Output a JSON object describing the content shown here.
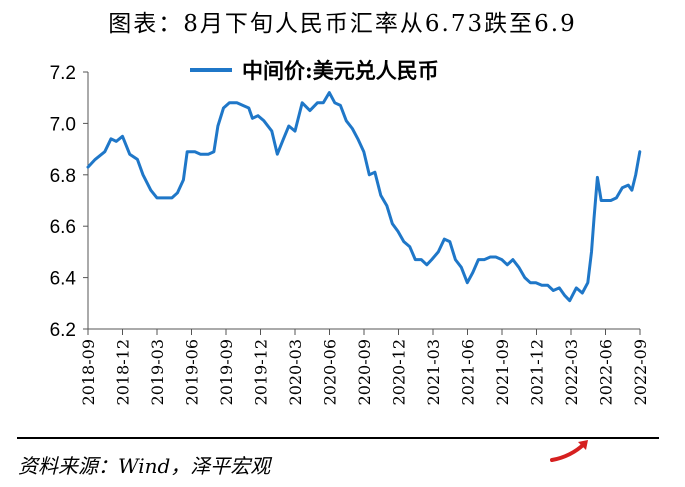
{
  "header": {
    "title": "图表：8月下旬人民币汇率从6.73跌至6.9"
  },
  "footer": {
    "source": "资料来源：Wind，泽平宏观"
  },
  "colors": {
    "series": "#1f77c8",
    "axis": "#555555",
    "text": "#000000",
    "accent": "#d62020"
  },
  "chart_data": {
    "type": "line",
    "title": "图表：8月下旬人民币汇率从6.73跌至6.9",
    "xlabel": "",
    "ylabel": "",
    "ylim": [
      6.2,
      7.2
    ],
    "yticks": [
      "6.2",
      "6.4",
      "6.6",
      "6.8",
      "7.0",
      "7.2"
    ],
    "xticks": [
      "2018-09",
      "2018-12",
      "2019-03",
      "2019-06",
      "2019-09",
      "2019-12",
      "2020-03",
      "2020-06",
      "2020-09",
      "2020-12",
      "2021-03",
      "2021-06",
      "2021-09",
      "2021-12",
      "2022-03",
      "2022-06",
      "2022-09"
    ],
    "legend": {
      "position": "top-center"
    },
    "grid": false,
    "series": [
      {
        "name": "中间价:美元兑人民币",
        "points": [
          [
            "2018-09-01",
            6.83
          ],
          [
            "2018-09-20",
            6.86
          ],
          [
            "2018-10-15",
            6.89
          ],
          [
            "2018-11-01",
            6.94
          ],
          [
            "2018-11-15",
            6.93
          ],
          [
            "2018-12-01",
            6.95
          ],
          [
            "2018-12-20",
            6.88
          ],
          [
            "2019-01-10",
            6.86
          ],
          [
            "2019-01-25",
            6.8
          ],
          [
            "2019-02-15",
            6.74
          ],
          [
            "2019-03-01",
            6.71
          ],
          [
            "2019-03-20",
            6.71
          ],
          [
            "2019-04-10",
            6.71
          ],
          [
            "2019-04-25",
            6.73
          ],
          [
            "2019-05-10",
            6.78
          ],
          [
            "2019-05-20",
            6.89
          ],
          [
            "2019-06-10",
            6.89
          ],
          [
            "2019-06-25",
            6.88
          ],
          [
            "2019-07-15",
            6.88
          ],
          [
            "2019-07-30",
            6.89
          ],
          [
            "2019-08-10",
            6.99
          ],
          [
            "2019-08-25",
            7.06
          ],
          [
            "2019-09-10",
            7.08
          ],
          [
            "2019-09-30",
            7.08
          ],
          [
            "2019-10-15",
            7.07
          ],
          [
            "2019-10-31",
            7.06
          ],
          [
            "2019-11-10",
            7.02
          ],
          [
            "2019-11-25",
            7.03
          ],
          [
            "2019-12-10",
            7.01
          ],
          [
            "2019-12-31",
            6.97
          ],
          [
            "2020-01-15",
            6.88
          ],
          [
            "2020-02-01",
            6.94
          ],
          [
            "2020-02-15",
            6.99
          ],
          [
            "2020-03-01",
            6.97
          ],
          [
            "2020-03-20",
            7.08
          ],
          [
            "2020-04-10",
            7.05
          ],
          [
            "2020-04-30",
            7.08
          ],
          [
            "2020-05-15",
            7.08
          ],
          [
            "2020-05-31",
            7.12
          ],
          [
            "2020-06-15",
            7.08
          ],
          [
            "2020-06-30",
            7.07
          ],
          [
            "2020-07-15",
            7.01
          ],
          [
            "2020-07-31",
            6.98
          ],
          [
            "2020-08-15",
            6.94
          ],
          [
            "2020-08-31",
            6.89
          ],
          [
            "2020-09-15",
            6.8
          ],
          [
            "2020-09-30",
            6.81
          ],
          [
            "2020-10-15",
            6.72
          ],
          [
            "2020-10-31",
            6.68
          ],
          [
            "2020-11-15",
            6.61
          ],
          [
            "2020-11-30",
            6.58
          ],
          [
            "2020-12-15",
            6.54
          ],
          [
            "2020-12-31",
            6.52
          ],
          [
            "2021-01-15",
            6.47
          ],
          [
            "2021-01-31",
            6.47
          ],
          [
            "2021-02-15",
            6.45
          ],
          [
            "2021-02-28",
            6.47
          ],
          [
            "2021-03-15",
            6.5
          ],
          [
            "2021-03-31",
            6.55
          ],
          [
            "2021-04-15",
            6.54
          ],
          [
            "2021-04-30",
            6.47
          ],
          [
            "2021-05-15",
            6.44
          ],
          [
            "2021-05-31",
            6.38
          ],
          [
            "2021-06-15",
            6.42
          ],
          [
            "2021-06-30",
            6.47
          ],
          [
            "2021-07-15",
            6.47
          ],
          [
            "2021-07-31",
            6.48
          ],
          [
            "2021-08-15",
            6.48
          ],
          [
            "2021-08-31",
            6.47
          ],
          [
            "2021-09-15",
            6.45
          ],
          [
            "2021-09-30",
            6.47
          ],
          [
            "2021-10-15",
            6.44
          ],
          [
            "2021-10-31",
            6.4
          ],
          [
            "2021-11-15",
            6.38
          ],
          [
            "2021-11-30",
            6.38
          ],
          [
            "2021-12-15",
            6.37
          ],
          [
            "2021-12-31",
            6.37
          ],
          [
            "2022-01-15",
            6.35
          ],
          [
            "2022-01-31",
            6.36
          ],
          [
            "2022-02-15",
            6.33
          ],
          [
            "2022-02-28",
            6.31
          ],
          [
            "2022-03-15",
            6.36
          ],
          [
            "2022-03-31",
            6.34
          ],
          [
            "2022-04-15",
            6.38
          ],
          [
            "2022-04-25",
            6.5
          ],
          [
            "2022-05-01",
            6.63
          ],
          [
            "2022-05-10",
            6.79
          ],
          [
            "2022-05-20",
            6.7
          ],
          [
            "2022-06-01",
            6.7
          ],
          [
            "2022-06-15",
            6.7
          ],
          [
            "2022-06-30",
            6.71
          ],
          [
            "2022-07-15",
            6.75
          ],
          [
            "2022-07-31",
            6.76
          ],
          [
            "2022-08-10",
            6.74
          ],
          [
            "2022-08-20",
            6.8
          ],
          [
            "2022-08-31",
            6.89
          ]
        ]
      }
    ]
  }
}
